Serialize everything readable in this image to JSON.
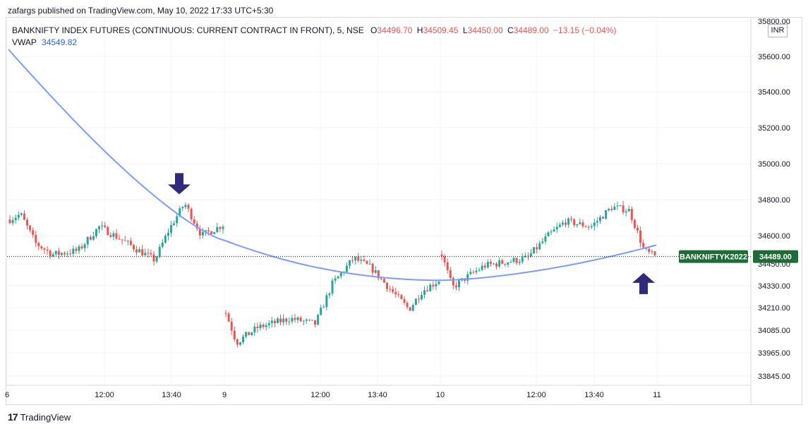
{
  "published_by": "zafargs published on TradingView.com, May 10, 2022 17:33 UTC+5:30",
  "legend": {
    "symbol": "BANKNIFTY INDEX FUTURES (CONTINUOUS: CURRENT CONTRACT IN FRONT), 5, NSE",
    "o_label": "O",
    "o_value": "34496.70",
    "h_label": "H",
    "h_value": "34509.45",
    "l_label": "L",
    "l_value": "34450.00",
    "c_label": "C",
    "c_value": "34489.00",
    "change": "−13.15 (−0.04%)",
    "vwap_label": "VWAP",
    "vwap_value": "34549.82"
  },
  "currency": "INR",
  "brand": "TradingView",
  "colors": {
    "up": "#26a69a",
    "down": "#ef5350",
    "vwap": "#7b9cff",
    "arrow": "#2f2a7a",
    "tag_bg": "#1e6b35"
  },
  "chart_data": {
    "type": "candlestick",
    "title": "BANKNIFTY INDEX FUTURES (CONTINUOUS: CURRENT CONTRACT IN FRONT), 5, NSE",
    "y_ticks": [
      "35800.00",
      "35600.00",
      "35400.00",
      "35200.00",
      "35000.00",
      "34800.00",
      "34600.00",
      "34450.00",
      "34330.00",
      "34210.00",
      "34085.00",
      "33965.00",
      "33845.00"
    ],
    "x_ticks": [
      "6",
      "12:00",
      "13:40",
      "9",
      "12:00",
      "13:40",
      "10",
      "12:00",
      "13:40",
      "11"
    ],
    "last_price": 34489.0,
    "last_price_label": "34489.00",
    "symbol_tag": "BANKNIFTYK2022",
    "grid": true,
    "sessions": [
      {
        "date": "6",
        "vwap_start": 35640,
        "vwap_end": 34575,
        "open": 34690,
        "close": 34540,
        "high": 34820,
        "low": 34440,
        "low_time": "late",
        "high_time": "13:55"
      },
      {
        "date": "9",
        "vwap_start": 34575,
        "vwap_end": 34360,
        "open": 34180,
        "close": 34360,
        "high": 34560,
        "low": 33980,
        "low_time": "09:20"
      },
      {
        "date": "10",
        "vwap_start": 34360,
        "vwap_end": 34549.82,
        "open": 34500,
        "close": 34489,
        "high": 34790,
        "low": 34200
      }
    ],
    "annotations": [
      {
        "type": "arrow-down",
        "near": "6 ~13:55",
        "price": 34830
      },
      {
        "type": "arrow-up",
        "near": "10 close",
        "price": 34400
      }
    ]
  }
}
